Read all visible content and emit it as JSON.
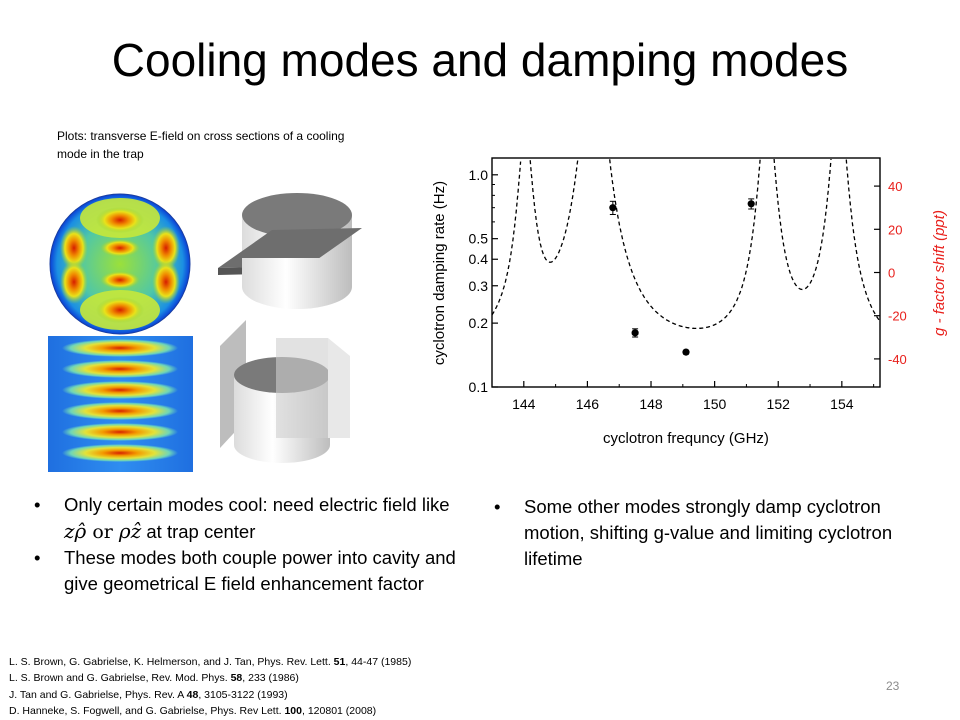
{
  "slide": {
    "title": "Cooling modes and damping modes",
    "caption": "Plots: transverse E-field on cross sections of a cooling mode in the trap",
    "bullets_left": {
      "item1_before": "Only certain modes cool: need electric field like",
      "math_z": "z",
      "math_rhohat": "ρ̂",
      "math_or": " or ",
      "math_rho": "ρ",
      "math_zhat": "ẑ",
      "item1_after": " at trap center",
      "item2": "These modes both couple power into cavity and give geometrical E field enhancement factor"
    },
    "bullets_right": {
      "item1": "Some other modes strongly damp cyclotron motion, shifting g-value and limiting cyclotron lifetime"
    },
    "references": [
      {
        "pre": "L. S. Brown, G. Gabrielse, K. Helmerson, and J. Tan, Phys. Rev. Lett. ",
        "vol": "51",
        "post": ", 44-47 (1985)"
      },
      {
        "pre": "L. S. Brown and G. Gabrielse, Rev. Mod. Phys. ",
        "vol": "58",
        "post": ", 233 (1986)"
      },
      {
        "pre": "J. Tan and G. Gabrielse, Phys. Rev. A ",
        "vol": "48",
        "post": ", 3105-3122 (1993)"
      },
      {
        "pre": "D. Hanneke, S. Fogwell, and G. Gabrielse, Phys. Rev Lett. ",
        "vol": "100",
        "post": ", 120801 (2008)"
      }
    ],
    "page_number": "23"
  },
  "colors": {
    "red_curve": "#e8201c",
    "dashed_curve": "#000000",
    "surface_gray": "#6e6e6e"
  },
  "chart_data": {
    "type": "line",
    "xlabel": "cyclotron frequncy (GHz)",
    "ylabel": "cyclotron damping rate (Hz)",
    "ylabel_right": "g - factor shift (ppt)",
    "xlim": [
      143,
      155.2
    ],
    "ylim": [
      0.1,
      1.2
    ],
    "yscale": "log",
    "ylim_right": [
      -53,
      53
    ],
    "x_ticks": [
      144,
      146,
      148,
      150,
      152,
      154
    ],
    "y_ticks": [
      0.1,
      0.2,
      0.3,
      0.4,
      0.5,
      1.0
    ],
    "y_tick_labels": [
      "0.1",
      "0.2",
      "0.3",
      "0.4",
      "0.5",
      "1.0"
    ],
    "y_right_ticks": [
      -40,
      -20,
      0,
      20,
      40
    ],
    "y_right_tick_labels": [
      "-40",
      "-20",
      "0",
      "20",
      "40"
    ],
    "points": [
      {
        "x": 146.8,
        "y": 0.7,
        "err": 0.05
      },
      {
        "x": 147.5,
        "y": 0.18,
        "err": 0.008
      },
      {
        "x": 149.1,
        "y": 0.146,
        "err": 0.003
      },
      {
        "x": 151.15,
        "y": 0.73,
        "err": 0.04
      }
    ],
    "modes": [
      {
        "x": 144.05,
        "shift_ppt": 38
      },
      {
        "x": 146.2,
        "shift_ppt": 50
      },
      {
        "x": 151.65,
        "shift_ppt": 5
      },
      {
        "x": 153.9,
        "shift_ppt": 42
      }
    ]
  }
}
